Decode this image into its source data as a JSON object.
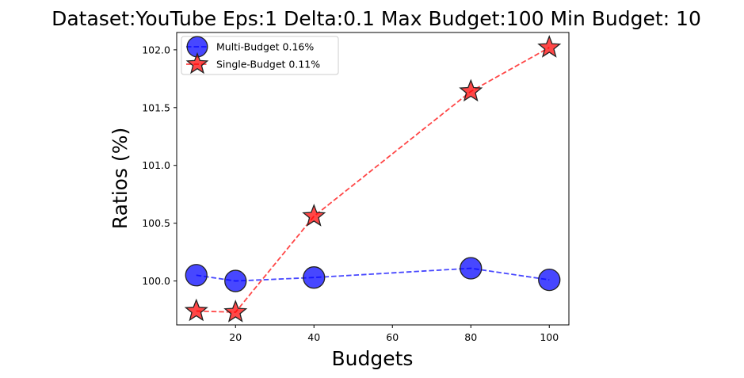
{
  "chart_data": {
    "type": "line",
    "title": "Dataset:YouTube Eps:1 Delta:0.1 Max Budget:100 Min Budget: 10",
    "xlabel": "Budgets",
    "ylabel": "Ratios (%)",
    "x": [
      10,
      20,
      40,
      80,
      100
    ],
    "xlim": [
      5,
      105
    ],
    "ylim": [
      99.62,
      102.15
    ],
    "xticks": [
      20,
      40,
      60,
      80,
      100
    ],
    "yticks": [
      100.0,
      100.5,
      101.0,
      101.5,
      102.0
    ],
    "xtick_labels": [
      "20",
      "40",
      "60",
      "80",
      "100"
    ],
    "ytick_labels": [
      "100.0",
      "100.5",
      "101.0",
      "101.5",
      "102.0"
    ],
    "grid": false,
    "legend_position": "top-left",
    "series": [
      {
        "name": "Multi-Budget 0.16%",
        "values": [
          100.05,
          100.0,
          100.03,
          100.11,
          100.01
        ],
        "color": "#0000ff",
        "marker": "circle",
        "line_style": "dashed"
      },
      {
        "name": "Single-Budget 0.11%",
        "values": [
          99.74,
          99.73,
          100.56,
          101.64,
          102.02
        ],
        "color": "#ff0000",
        "marker": "star",
        "line_style": "dashed"
      }
    ]
  }
}
